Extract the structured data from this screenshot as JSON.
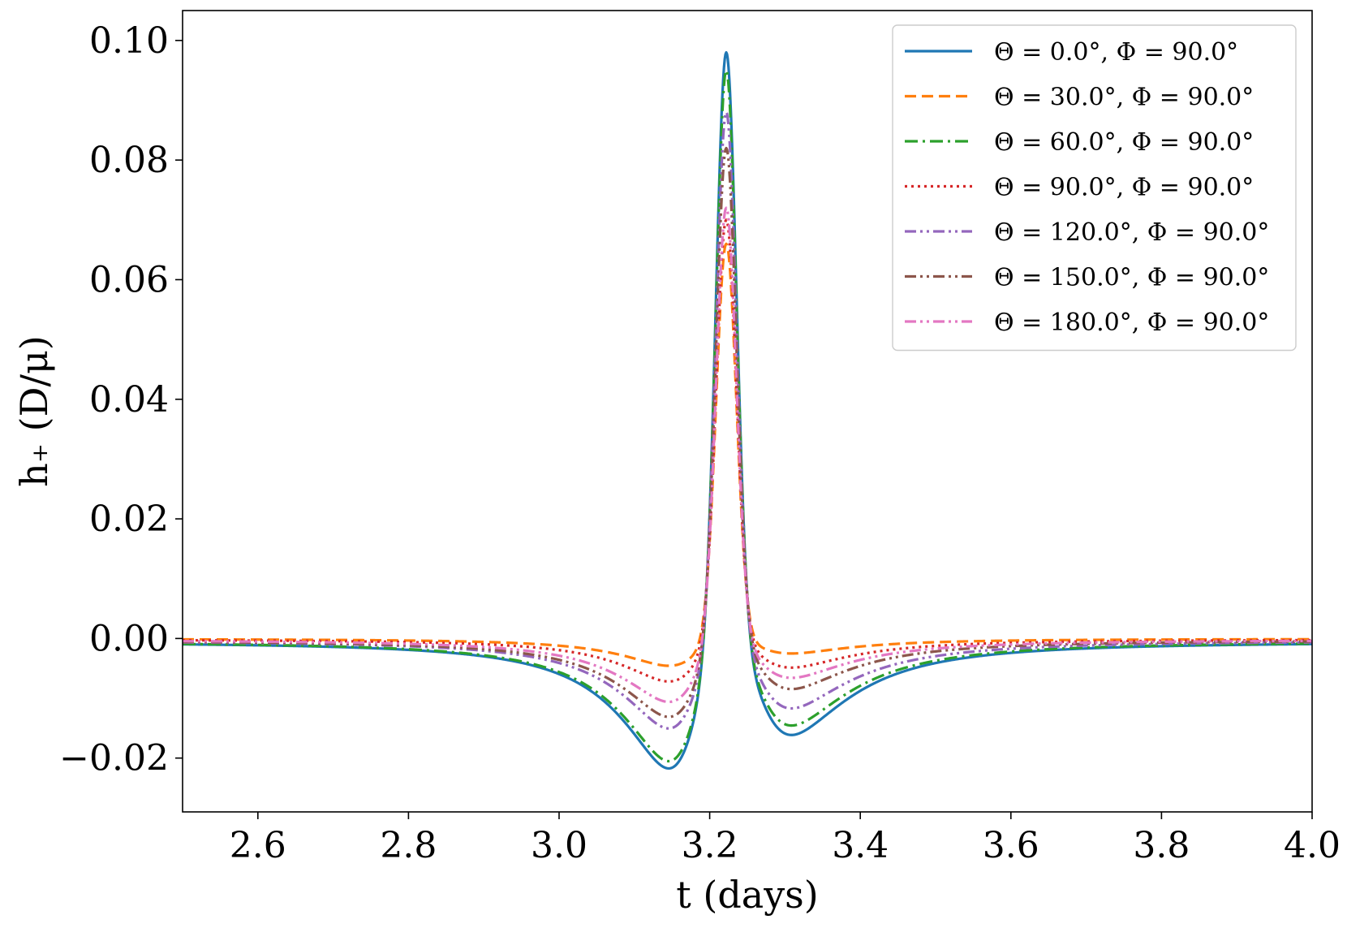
{
  "chart_data": {
    "type": "line",
    "title": "",
    "xlabel": "t (days)",
    "ylabel": "h₊ (D/μ)",
    "xlim": [
      2.5,
      4.0
    ],
    "ylim": [
      -0.029,
      0.105
    ],
    "xticks": [
      2.6,
      2.8,
      3.0,
      3.2,
      3.4,
      3.6,
      3.8,
      4.0
    ],
    "xtick_labels": [
      "2.6",
      "2.8",
      "3.0",
      "3.2",
      "3.4",
      "3.6",
      "3.8",
      "4.0"
    ],
    "yticks": [
      -0.02,
      0.0,
      0.02,
      0.04,
      0.06,
      0.08,
      0.1
    ],
    "ytick_labels": [
      "−0.02",
      "0.00",
      "0.02",
      "0.04",
      "0.06",
      "0.08",
      "0.10"
    ],
    "grid": false,
    "legend_position": "top-right",
    "peak_t": 3.222,
    "series": [
      {
        "name": "Θ = 0.0°,  Φ = 90.0°",
        "color": "#1f77b4",
        "dash": "solid",
        "peak": 0.098,
        "min_left": -0.0235,
        "t_min_left": 3.165,
        "min_right": -0.0172,
        "t_min_right": 3.285,
        "base_left": -0.0028,
        "base_right": -0.0027
      },
      {
        "name": "Θ = 30.0°,  Φ = 90.0°",
        "color": "#ff7f0e",
        "dash": "dashed",
        "peak": 0.066,
        "min_left": -0.005,
        "t_min_left": 3.165,
        "min_right": -0.0027,
        "t_min_right": 3.285,
        "base_left": -0.0003,
        "base_right": -0.0003
      },
      {
        "name": "Θ = 60.0°,  Φ = 90.0°",
        "color": "#2ca02c",
        "dash": "dashdot",
        "peak": 0.095,
        "min_left": -0.0222,
        "t_min_left": 3.165,
        "min_right": -0.0155,
        "t_min_right": 3.285,
        "base_left": -0.0026,
        "base_right": -0.0025
      },
      {
        "name": "Θ = 90.0°,  Φ = 90.0°",
        "color": "#d62728",
        "dash": "dotted",
        "peak": 0.07,
        "min_left": -0.0078,
        "t_min_left": 3.165,
        "min_right": -0.0052,
        "t_min_right": 3.285,
        "base_left": -0.0008,
        "base_right": -0.0008
      },
      {
        "name": "Θ = 120.0°,  Φ = 90.0°",
        "color": "#9467bd",
        "dash": "dashdotdot",
        "peak": 0.088,
        "min_left": -0.0163,
        "t_min_left": 3.165,
        "min_right": -0.0125,
        "t_min_right": 3.285,
        "base_left": -0.0018,
        "base_right": -0.0018
      },
      {
        "name": "Θ = 150.0°,  Φ = 90.0°",
        "color": "#8c564b",
        "dash": "dashdotdot",
        "peak": 0.082,
        "min_left": -0.0142,
        "t_min_left": 3.165,
        "min_right": -0.009,
        "t_min_right": 3.285,
        "base_left": -0.0016,
        "base_right": -0.0015
      },
      {
        "name": "Θ = 180.0°,  Φ = 90.0°",
        "color": "#e377c2",
        "dash": "dashdotdot",
        "peak": 0.072,
        "min_left": -0.0115,
        "t_min_left": 3.165,
        "min_right": -0.007,
        "t_min_right": 3.285,
        "base_left": -0.0012,
        "base_right": -0.0012
      }
    ]
  }
}
